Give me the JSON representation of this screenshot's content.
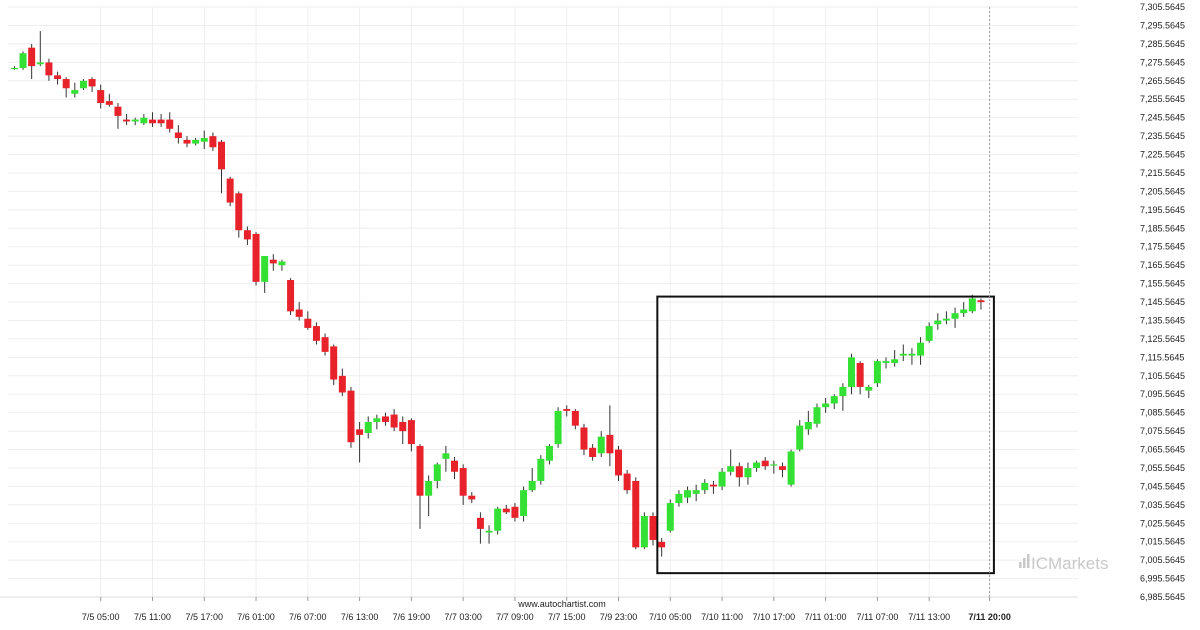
{
  "chart_data": {
    "type": "candlestick",
    "ylim": [
      6985.5645,
      7305.5645
    ],
    "y_ticks": [
      "7,305.5645",
      "7,295.5645",
      "7,285.5645",
      "7,275.5645",
      "7,265.5645",
      "7,255.5645",
      "7,245.5645",
      "7,235.5645",
      "7,225.5645",
      "7,215.5645",
      "7,205.5645",
      "7,195.5645",
      "7,185.5645",
      "7,175.5645",
      "7,165.5645",
      "7,155.5645",
      "7,145.5645",
      "7,135.5645",
      "7,125.5645",
      "7,115.5645",
      "7,105.5645",
      "7,095.5645",
      "7,085.5645",
      "7,075.5645",
      "7,065.5645",
      "7,055.5645",
      "7,045.5645",
      "7,035.5645",
      "7,025.5645",
      "7,015.5645",
      "7,005.5645",
      "6,995.5645",
      "6,985.5645"
    ],
    "y_tick_values": [
      7305.5645,
      7295.5645,
      7285.5645,
      7275.5645,
      7265.5645,
      7255.5645,
      7245.5645,
      7235.5645,
      7225.5645,
      7215.5645,
      7205.5645,
      7195.5645,
      7185.5645,
      7175.5645,
      7165.5645,
      7155.5645,
      7145.5645,
      7135.5645,
      7125.5645,
      7115.5645,
      7105.5645,
      7095.5645,
      7085.5645,
      7075.5645,
      7065.5645,
      7055.5645,
      7045.5645,
      7035.5645,
      7025.5645,
      7015.5645,
      7005.5645,
      6995.5645,
      6985.5645
    ],
    "x_tick_labels": [
      {
        "label": "7/5 05:00",
        "bar": 10
      },
      {
        "label": "7/5 11:00",
        "bar": 16
      },
      {
        "label": "7/5 17:00",
        "bar": 22
      },
      {
        "label": "7/6 01:00",
        "bar": 28
      },
      {
        "label": "7/6 07:00",
        "bar": 34
      },
      {
        "label": "7/6 13:00",
        "bar": 40
      },
      {
        "label": "7/6 19:00",
        "bar": 46
      },
      {
        "label": "7/7 03:00",
        "bar": 52
      },
      {
        "label": "7/7 09:00",
        "bar": 58
      },
      {
        "label": "7/7 15:00",
        "bar": 64
      },
      {
        "label": "7/9 23:00",
        "bar": 70
      },
      {
        "label": "7/10 05:00",
        "bar": 76
      },
      {
        "label": "7/10 11:00",
        "bar": 82
      },
      {
        "label": "7/10 17:00",
        "bar": 88
      },
      {
        "label": "7/11 01:00",
        "bar": 94
      },
      {
        "label": "7/11 07:00",
        "bar": 100
      },
      {
        "label": "7/11 13:00",
        "bar": 106
      },
      {
        "label": "7/11 20:00",
        "bar": 113,
        "bold": true
      }
    ],
    "candles": [
      {
        "o": 7272.5,
        "h": 7273.5,
        "l": 7271.5,
        "c": 7272.5
      },
      {
        "o": 7272.5,
        "h": 7281.5,
        "l": 7271.5,
        "c": 7280.5
      },
      {
        "o": 7283.5,
        "h": 7285.5,
        "l": 7266.5,
        "c": 7273.5
      },
      {
        "o": 7274.5,
        "h": 7292.5,
        "l": 7273.5,
        "c": 7275.5
      },
      {
        "o": 7275.5,
        "h": 7277.5,
        "l": 7265.5,
        "c": 7268.5
      },
      {
        "o": 7268.5,
        "h": 7270.5,
        "l": 7263.5,
        "c": 7266.5
      },
      {
        "o": 7266.5,
        "h": 7267.5,
        "l": 7256.5,
        "c": 7261.5
      },
      {
        "o": 7258.5,
        "h": 7264.5,
        "l": 7256.5,
        "c": 7260.5
      },
      {
        "o": 7261.5,
        "h": 7266.5,
        "l": 7260.5,
        "c": 7265.5
      },
      {
        "o": 7266.5,
        "h": 7267.5,
        "l": 7259.5,
        "c": 7262.5
      },
      {
        "o": 7260.5,
        "h": 7263.5,
        "l": 7250.5,
        "c": 7253.5
      },
      {
        "o": 7254.5,
        "h": 7258.5,
        "l": 7251.5,
        "c": 7252.5
      },
      {
        "o": 7251.5,
        "h": 7253.5,
        "l": 7239.5,
        "c": 7246.5
      },
      {
        "o": 7244.5,
        "h": 7247.5,
        "l": 7241.5,
        "c": 7243.5
      },
      {
        "o": 7243.5,
        "h": 7245.5,
        "l": 7241.5,
        "c": 7244.5
      },
      {
        "o": 7242.5,
        "h": 7247.5,
        "l": 7241.5,
        "c": 7245.5
      },
      {
        "o": 7244.5,
        "h": 7248.5,
        "l": 7240.5,
        "c": 7242.5
      },
      {
        "o": 7244.5,
        "h": 7247.5,
        "l": 7240.5,
        "c": 7242.5
      },
      {
        "o": 7244.5,
        "h": 7248.5,
        "l": 7237.5,
        "c": 7239.5
      },
      {
        "o": 7237.5,
        "h": 7241.5,
        "l": 7231.5,
        "c": 7234.5
      },
      {
        "o": 7233.5,
        "h": 7235.5,
        "l": 7229.5,
        "c": 7231.5
      },
      {
        "o": 7231.5,
        "h": 7234.5,
        "l": 7230.5,
        "c": 7233.5
      },
      {
        "o": 7232.5,
        "h": 7238.5,
        "l": 7228.5,
        "c": 7234.5
      },
      {
        "o": 7235.5,
        "h": 7237.5,
        "l": 7227.5,
        "c": 7229.5
      },
      {
        "o": 7232.5,
        "h": 7233.5,
        "l": 7204.5,
        "c": 7217.5
      },
      {
        "o": 7212.5,
        "h": 7213.5,
        "l": 7197.5,
        "c": 7199.5
      },
      {
        "o": 7204.5,
        "h": 7205.5,
        "l": 7180.5,
        "c": 7184.5
      },
      {
        "o": 7184.5,
        "h": 7186.5,
        "l": 7176.5,
        "c": 7179.5
      },
      {
        "o": 7182.5,
        "h": 7183.5,
        "l": 7154.5,
        "c": 7156.5
      },
      {
        "o": 7156.5,
        "h": 7170.5,
        "l": 7150.5,
        "c": 7170.5
      },
      {
        "o": 7168.5,
        "h": 7171.5,
        "l": 7162.5,
        "c": 7166.5
      },
      {
        "o": 7165.5,
        "h": 7168.5,
        "l": 7162.5,
        "c": 7167.5
      },
      {
        "o": 7157.5,
        "h": 7158.5,
        "l": 7138.5,
        "c": 7140.5
      },
      {
        "o": 7141.5,
        "h": 7145.5,
        "l": 7135.5,
        "c": 7137.5
      },
      {
        "o": 7136.5,
        "h": 7140.5,
        "l": 7130.5,
        "c": 7131.5
      },
      {
        "o": 7132.5,
        "h": 7134.5,
        "l": 7122.5,
        "c": 7124.5
      },
      {
        "o": 7126.5,
        "h": 7128.5,
        "l": 7116.5,
        "c": 7118.5
      },
      {
        "o": 7121.5,
        "h": 7122.5,
        "l": 7100.5,
        "c": 7103.5
      },
      {
        "o": 7105.5,
        "h": 7109.5,
        "l": 7094.5,
        "c": 7096.5
      },
      {
        "o": 7097.5,
        "h": 7099.5,
        "l": 7066.5,
        "c": 7069.5
      },
      {
        "o": 7076.5,
        "h": 7080.5,
        "l": 7058.5,
        "c": 7073.5
      },
      {
        "o": 7074.5,
        "h": 7083.5,
        "l": 7071.5,
        "c": 7080.5
      },
      {
        "o": 7080.5,
        "h": 7084.5,
        "l": 7076.5,
        "c": 7082.5
      },
      {
        "o": 7083.5,
        "h": 7085.5,
        "l": 7078.5,
        "c": 7080.5
      },
      {
        "o": 7084.5,
        "h": 7087.5,
        "l": 7075.5,
        "c": 7077.5
      },
      {
        "o": 7080.5,
        "h": 7083.5,
        "l": 7068.5,
        "c": 7075.5
      },
      {
        "o": 7081.5,
        "h": 7082.5,
        "l": 7064.5,
        "c": 7068.5
      },
      {
        "o": 7067.5,
        "h": 7068.5,
        "l": 7022.5,
        "c": 7040.5
      },
      {
        "o": 7040.5,
        "h": 7051.5,
        "l": 7029.5,
        "c": 7048.5
      },
      {
        "o": 7048.5,
        "h": 7058.5,
        "l": 7044.5,
        "c": 7057.5
      },
      {
        "o": 7060.5,
        "h": 7067.5,
        "l": 7053.5,
        "c": 7063.5
      },
      {
        "o": 7059.5,
        "h": 7061.5,
        "l": 7049.5,
        "c": 7053.5
      },
      {
        "o": 7055.5,
        "h": 7057.5,
        "l": 7035.5,
        "c": 7040.5
      },
      {
        "o": 7040.5,
        "h": 7042.5,
        "l": 7036.5,
        "c": 7038.5
      },
      {
        "o": 7028.5,
        "h": 7031.5,
        "l": 7014.5,
        "c": 7022.5
      },
      {
        "o": 7020.5,
        "h": 7024.5,
        "l": 7014.5,
        "c": 7021.5
      },
      {
        "o": 7021.5,
        "h": 7034.5,
        "l": 7019.5,
        "c": 7033.5
      },
      {
        "o": 7033.5,
        "h": 7035.5,
        "l": 7030.5,
        "c": 7031.5
      },
      {
        "o": 7034.5,
        "h": 7036.5,
        "l": 7026.5,
        "c": 7028.5
      },
      {
        "o": 7029.5,
        "h": 7045.5,
        "l": 7026.5,
        "c": 7043.5
      },
      {
        "o": 7043.5,
        "h": 7055.5,
        "l": 7042.5,
        "c": 7048.5
      },
      {
        "o": 7048.5,
        "h": 7062.5,
        "l": 7046.5,
        "c": 7060.5
      },
      {
        "o": 7059.5,
        "h": 7068.5,
        "l": 7057.5,
        "c": 7067.5
      },
      {
        "o": 7068.5,
        "h": 7088.5,
        "l": 7066.5,
        "c": 7086.5
      },
      {
        "o": 7087.5,
        "h": 7089.5,
        "l": 7083.5,
        "c": 7086.5
      },
      {
        "o": 7086.5,
        "h": 7087.5,
        "l": 7076.5,
        "c": 7078.5
      },
      {
        "o": 7077.5,
        "h": 7079.5,
        "l": 7062.5,
        "c": 7065.5
      },
      {
        "o": 7066.5,
        "h": 7068.5,
        "l": 7059.5,
        "c": 7061.5
      },
      {
        "o": 7063.5,
        "h": 7075.5,
        "l": 7061.5,
        "c": 7072.5
      },
      {
        "o": 7073.5,
        "h": 7089.5,
        "l": 7056.5,
        "c": 7063.5
      },
      {
        "o": 7065.5,
        "h": 7067.5,
        "l": 7048.5,
        "c": 7051.5
      },
      {
        "o": 7052.5,
        "h": 7054.5,
        "l": 7041.5,
        "c": 7043.5
      },
      {
        "o": 7048.5,
        "h": 7050.5,
        "l": 7011.5,
        "c": 7012.5
      },
      {
        "o": 7012.5,
        "h": 7031.5,
        "l": 7011.5,
        "c": 7029.5
      },
      {
        "o": 7029.5,
        "h": 7031.5,
        "l": 7013.5,
        "c": 7016.5
      },
      {
        "o": 7015.5,
        "h": 7017.5,
        "l": 7007.5,
        "c": 7012.5
      },
      {
        "o": 7021.5,
        "h": 7038.5,
        "l": 7020.5,
        "c": 7036.5
      },
      {
        "o": 7036.5,
        "h": 7043.5,
        "l": 7034.5,
        "c": 7041.5
      },
      {
        "o": 7039.5,
        "h": 7045.5,
        "l": 7036.5,
        "c": 7043.5
      },
      {
        "o": 7041.5,
        "h": 7046.5,
        "l": 7037.5,
        "c": 7043.5
      },
      {
        "o": 7043.5,
        "h": 7049.5,
        "l": 7041.5,
        "c": 7047.5
      },
      {
        "o": 7046.5,
        "h": 7048.5,
        "l": 7041.5,
        "c": 7045.5
      },
      {
        "o": 7045.5,
        "h": 7055.5,
        "l": 7043.5,
        "c": 7053.5
      },
      {
        "o": 7053.5,
        "h": 7065.5,
        "l": 7051.5,
        "c": 7056.5
      },
      {
        "o": 7056.5,
        "h": 7058.5,
        "l": 7045.5,
        "c": 7050.5
      },
      {
        "o": 7050.5,
        "h": 7058.5,
        "l": 7046.5,
        "c": 7055.5
      },
      {
        "o": 7055.5,
        "h": 7059.5,
        "l": 7053.5,
        "c": 7058.5
      },
      {
        "o": 7059.5,
        "h": 7061.5,
        "l": 7054.5,
        "c": 7056.5
      },
      {
        "o": 7057.5,
        "h": 7059.5,
        "l": 7052.5,
        "c": 7057.5
      },
      {
        "o": 7056.5,
        "h": 7058.5,
        "l": 7050.5,
        "c": 7054.5
      },
      {
        "o": 7046.5,
        "h": 7065.5,
        "l": 7045.5,
        "c": 7064.5
      },
      {
        "o": 7065.5,
        "h": 7081.5,
        "l": 7064.5,
        "c": 7078.5
      },
      {
        "o": 7076.5,
        "h": 7086.5,
        "l": 7073.5,
        "c": 7080.5
      },
      {
        "o": 7079.5,
        "h": 7090.5,
        "l": 7077.5,
        "c": 7088.5
      },
      {
        "o": 7088.5,
        "h": 7093.5,
        "l": 7085.5,
        "c": 7090.5
      },
      {
        "o": 7090.5,
        "h": 7095.5,
        "l": 7087.5,
        "c": 7094.5
      },
      {
        "o": 7094.5,
        "h": 7101.5,
        "l": 7086.5,
        "c": 7099.5
      },
      {
        "o": 7099.5,
        "h": 7117.5,
        "l": 7095.5,
        "c": 7115.5
      },
      {
        "o": 7112.5,
        "h": 7113.5,
        "l": 7095.5,
        "c": 7099.5
      },
      {
        "o": 7097.5,
        "h": 7100.5,
        "l": 7093.5,
        "c": 7099.5
      },
      {
        "o": 7101.5,
        "h": 7114.5,
        "l": 7099.5,
        "c": 7113.5
      },
      {
        "o": 7112.5,
        "h": 7115.5,
        "l": 7109.5,
        "c": 7113.5
      },
      {
        "o": 7112.5,
        "h": 7119.5,
        "l": 7110.5,
        "c": 7114.5
      },
      {
        "o": 7116.5,
        "h": 7122.5,
        "l": 7113.5,
        "c": 7117.5
      },
      {
        "o": 7116.5,
        "h": 7120.5,
        "l": 7111.5,
        "c": 7117.5
      },
      {
        "o": 7116.5,
        "h": 7126.5,
        "l": 7111.5,
        "c": 7123.5
      },
      {
        "o": 7124.5,
        "h": 7134.5,
        "l": 7123.5,
        "c": 7132.5
      },
      {
        "o": 7133.5,
        "h": 7139.5,
        "l": 7130.5,
        "c": 7135.5
      },
      {
        "o": 7135.5,
        "h": 7140.5,
        "l": 7133.5,
        "c": 7136.5
      },
      {
        "o": 7136.5,
        "h": 7142.5,
        "l": 7131.5,
        "c": 7139.5
      },
      {
        "o": 7139.5,
        "h": 7145.5,
        "l": 7137.5,
        "c": 7141.5
      },
      {
        "o": 7140.5,
        "h": 7149.5,
        "l": 7139.5,
        "c": 7147.5
      },
      {
        "o": 7146.5,
        "h": 7147.5,
        "l": 7141.5,
        "c": 7145.5
      }
    ],
    "pattern_box": {
      "bar_start": 74.5,
      "bar_end": 113.5,
      "y_top": 7148.5,
      "y_bottom": 6998.5
    },
    "current_bar": 113,
    "colors": {
      "up": "#33e033",
      "down": "#e8222a",
      "wick": "#333333",
      "grid": "#eeeeee",
      "box": "#111111",
      "cursor_line": "#999999"
    }
  },
  "footer": {
    "source_text": "www.autochartist.com",
    "brand_logo": "ICMarkets"
  }
}
